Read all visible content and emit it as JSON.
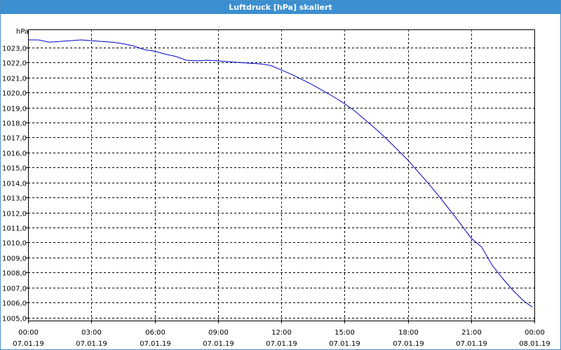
{
  "window": {
    "title": "Luftdruck [hPa] skaliert"
  },
  "chart_data": {
    "type": "line",
    "title": "Luftdruck [hPa] skaliert",
    "ylabel": "hPa",
    "xlabel": "",
    "ylim": [
      1004.8,
      1024.2
    ],
    "xlim": [
      0,
      24
    ],
    "grid": true,
    "y_ticks": [
      "1005,0",
      "1006,0",
      "1007,0",
      "1008,0",
      "1009,0",
      "1010,0",
      "1011,0",
      "1012,0",
      "1013,0",
      "1014,0",
      "1015,0",
      "1016,0",
      "1017,0",
      "1018,0",
      "1019,0",
      "1020,0",
      "1021,0",
      "1022,0",
      "1023,0"
    ],
    "x_ticks": [
      {
        "time": "00:00",
        "date": "07.01.19"
      },
      {
        "time": "03:00",
        "date": "07.01.19"
      },
      {
        "time": "06:00",
        "date": "07.01.19"
      },
      {
        "time": "09:00",
        "date": "07.01.19"
      },
      {
        "time": "12:00",
        "date": "07.01.19"
      },
      {
        "time": "15:00",
        "date": "07.01.19"
      },
      {
        "time": "18:00",
        "date": "07.01.19"
      },
      {
        "time": "21:00",
        "date": "07.01.19"
      },
      {
        "time": "00:00",
        "date": "08.01.19"
      }
    ],
    "series": [
      {
        "color": "#0000c8",
        "x": [
          0,
          0.5,
          1,
          1.5,
          2,
          2.5,
          3,
          3.5,
          4,
          4.5,
          5,
          5.5,
          6,
          6.5,
          7,
          7.5,
          8,
          8.5,
          9,
          9.5,
          10,
          10.5,
          11,
          11.5,
          12,
          12.5,
          13,
          13.5,
          14,
          14.5,
          15,
          15.5,
          16,
          16.5,
          17,
          17.5,
          18,
          18.5,
          19,
          19.5,
          20,
          20.5,
          21,
          21.5,
          22,
          22.5,
          23,
          23.5,
          23.9
        ],
        "y": [
          1023.5,
          1023.5,
          1023.35,
          1023.4,
          1023.45,
          1023.5,
          1023.45,
          1023.4,
          1023.35,
          1023.25,
          1023.1,
          1022.85,
          1022.75,
          1022.55,
          1022.4,
          1022.15,
          1022.1,
          1022.15,
          1022.1,
          1022.05,
          1022.0,
          1021.95,
          1021.9,
          1021.8,
          1021.5,
          1021.2,
          1020.85,
          1020.5,
          1020.1,
          1019.7,
          1019.25,
          1018.75,
          1018.15,
          1017.55,
          1016.9,
          1016.2,
          1015.5,
          1014.7,
          1013.9,
          1013.05,
          1012.15,
          1011.25,
          1010.3,
          1009.7,
          1008.5,
          1007.6,
          1006.8,
          1006.1,
          1005.7
        ]
      }
    ]
  }
}
